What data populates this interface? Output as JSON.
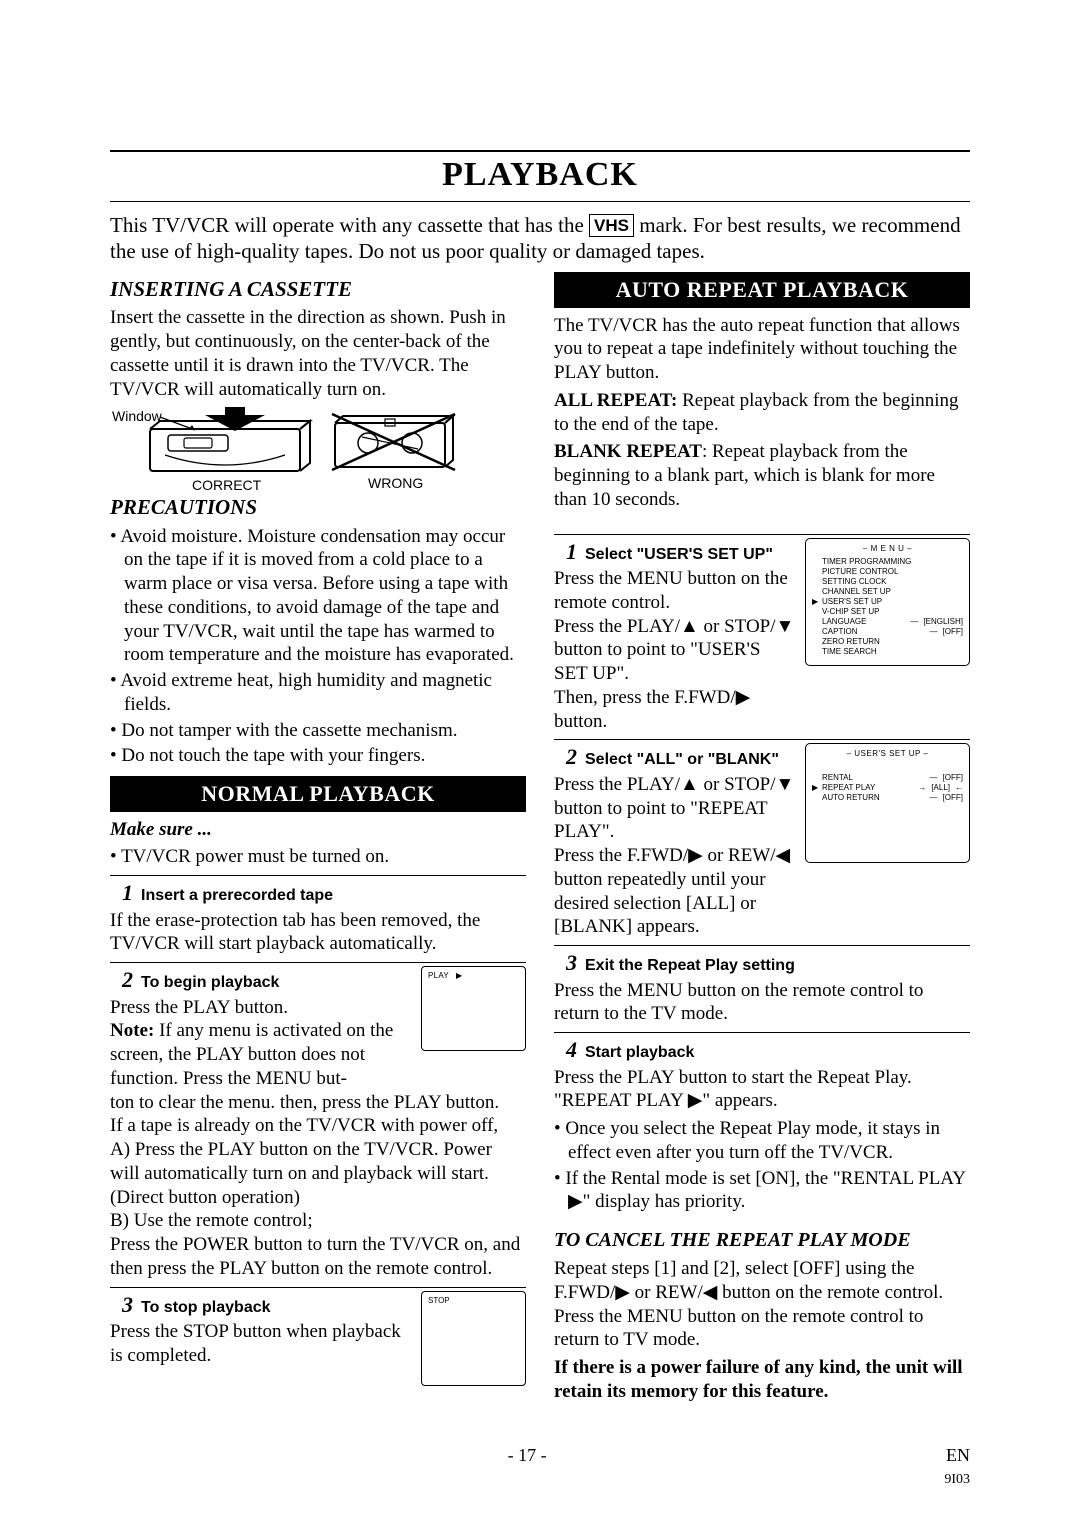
{
  "title": "PLAYBACK",
  "intro1": "This TV/VCR will operate with any cassette that has the ",
  "intro_vhs": "VHS",
  "intro2": " mark. For best results, we recommend the use of high-quality tapes. Do not us poor quality or damaged tapes.",
  "left": {
    "sec1_title": "INSERTING A CASSETTE",
    "sec1_body": "Insert the cassette in the direction as shown. Push in gently, but continuously, on the center-back of the cassette until it is drawn into the TV/VCR. The TV/VCR will automatically turn on.",
    "diag": {
      "window": "Window",
      "correct": "CORRECT",
      "wrong": "WRONG"
    },
    "sec2_title": "PRECAUTIONS",
    "prec_bullets": [
      "Avoid moisture. Moisture condensation may occur on the tape if it is moved from a cold place to a warm place or visa versa. Before using a tape with these conditions, to avoid damage of the tape and your TV/VCR, wait until the tape has warmed to room temperature and the moisture has evaporated.",
      "Avoid extreme heat, high humidity and magnetic fields.",
      "Do not tamper with the cassette mechanism.",
      "Do not touch the tape with your fingers."
    ],
    "banner": "NORMAL PLAYBACK",
    "make_sure": "Make sure ...",
    "make_sure_bullets": [
      "TV/VCR power must be turned on."
    ],
    "s1": {
      "title": "Insert a prerecorded tape",
      "body": "If the erase-protection tab has been removed, the TV/VCR will start playback automatically."
    },
    "s2": {
      "title": "To begin playback",
      "btn_label": "PLAY",
      "btn_sym": "▶",
      "p1": "Press the PLAY button.",
      "p2a": "Note:",
      "p2b": " If any menu is activated on the screen, the PLAY button does not function. Press the MENU but-",
      "p3": "ton to clear the menu. then, press the PLAY button.",
      "p4": "If a tape is already on the TV/VCR with power off,",
      "p5": "A) Press the PLAY button on the TV/VCR. Power will automatically turn on and playback will start. (Direct button operation)",
      "p6": "B) Use the remote control;",
      "p7": "Press the POWER button to turn the TV/VCR on, and then press the PLAY button on the remote control."
    },
    "s3": {
      "title": "To stop playback",
      "btn_label": "STOP",
      "body": "Press the STOP button when playback is completed."
    }
  },
  "right": {
    "banner": "AUTO REPEAT PLAYBACK",
    "p1": "The TV/VCR has the auto repeat function that allows you to repeat a tape indefinitely without touching the PLAY button.",
    "ar_label": "ALL REPEAT:",
    "ar_body": " Repeat playback from the beginning to the end of the tape.",
    "br_label": "BLANK REPEAT",
    "br_body": ": Repeat playback from the beginning to a blank part, which is blank for more than 10 seconds.",
    "s1": {
      "title": "Select \"USER'S SET UP\"",
      "p1": "Press the MENU button on the remote control.",
      "p2": "Press the PLAY/▲ or STOP/▼ button to point to \"USER'S SET UP\".",
      "p3": "Then, press the F.FWD/▶ button.",
      "menu": {
        "title": "– M E N U –",
        "items": [
          {
            "label": "TIMER PROGRAMMING"
          },
          {
            "label": "PICTURE CONTROL"
          },
          {
            "label": "SETTING CLOCK"
          },
          {
            "label": "CHANNEL SET UP"
          },
          {
            "label": "USER'S SET UP",
            "sel": true
          },
          {
            "label": "V-CHIP SET UP"
          },
          {
            "label": "LANGUAGE",
            "val": "[ENGLISH]"
          },
          {
            "label": "CAPTION",
            "val": "[OFF]"
          },
          {
            "label": "ZERO RETURN"
          },
          {
            "label": "TIME SEARCH"
          }
        ]
      }
    },
    "s2": {
      "title": "Select \"ALL\" or \"BLANK\"",
      "p1": "Press the PLAY/▲ or STOP/▼ button to point to \"REPEAT PLAY\".",
      "p2": "Press the F.FWD/▶ or REW/◀ button repeatedly until your desired selection [ALL] or [BLANK] appears.",
      "menu": {
        "title": "– USER'S SET UP –",
        "items": [
          {
            "label": "RENTAL",
            "val": "[OFF]"
          },
          {
            "label": "REPEAT PLAY",
            "val": "[ALL]",
            "sel": true,
            "hl": true
          },
          {
            "label": "AUTO RETURN",
            "val": "[OFF]"
          }
        ]
      }
    },
    "s3": {
      "title": "Exit the Repeat Play setting",
      "p1": "Press the MENU button on the remote control to return to the TV mode."
    },
    "s4": {
      "title": "Start playback",
      "p1": "Press the PLAY button to start the Repeat Play. \"REPEAT PLAY ▶\" appears.",
      "bullets": [
        "Once you select the Repeat Play mode, it stays in effect even after you turn off the TV/VCR.",
        "If the Rental mode is set [ON], the \"RENTAL PLAY ▶\" display has priority."
      ]
    },
    "cancel_title": "TO CANCEL THE REPEAT PLAY MODE",
    "cancel_p1": "Repeat steps [1] and [2], select [OFF] using the F.FWD/▶ or REW/◀ button on the remote control. Press the MENU button on the remote control to return to TV mode.",
    "cancel_p2": "If there is a power failure of any kind, the unit will retain its memory for this feature."
  },
  "footer": {
    "page": "- 17 -",
    "lang": "EN",
    "code": "9I03"
  }
}
